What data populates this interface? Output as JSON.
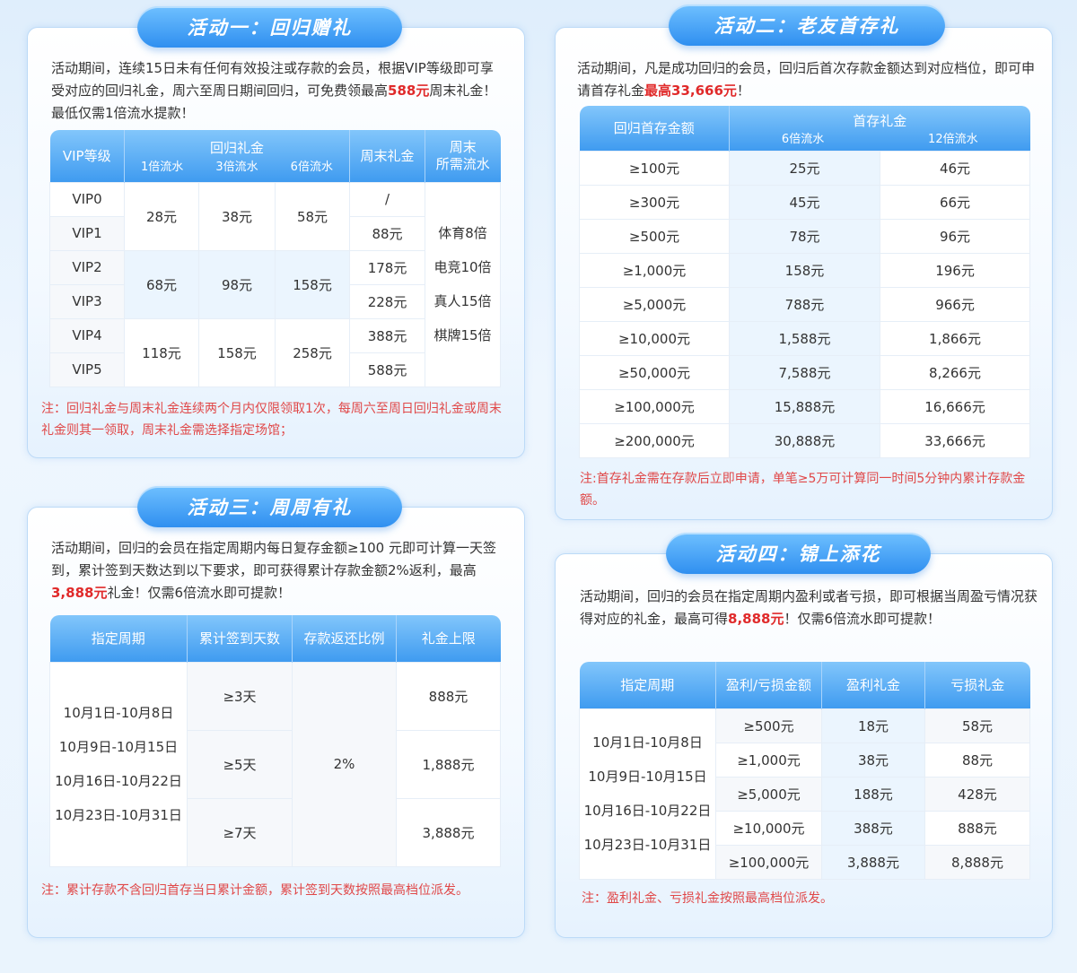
{
  "a1": {
    "title": "活动一：回归赠礼",
    "desc": [
      "活动期间，连续15日未有任何有效投注或存款的会员，根据VIP等级即可享受对应的回归礼金，周六至周日期间回归，可免费领最高",
      "588元",
      "周末礼金！最低仅需1倍流水提款！"
    ],
    "headers": {
      "vip": "VIP等级",
      "gift": "回归礼金",
      "x1": "1倍流水",
      "x3": "3倍流水",
      "x6": "6倍流水",
      "weekend": "周末礼金",
      "turnover1": "周末",
      "turnover2": "所需流水"
    },
    "vips": [
      "VIP0",
      "VIP1",
      "VIP2",
      "VIP3",
      "VIP4",
      "VIP5"
    ],
    "gifts": [
      [
        "28元",
        "38元",
        "58元"
      ],
      [
        "68元",
        "98元",
        "158元"
      ],
      [
        "118元",
        "158元",
        "258元"
      ]
    ],
    "weekend": [
      "/",
      "88元",
      "178元",
      "228元",
      "388元",
      "588元"
    ],
    "turnover": [
      "体育8倍",
      "电竞10倍",
      "真人15倍",
      "棋牌15倍"
    ],
    "note": "注：回归礼金与周末礼金连续两个月内仅限领取1次，每周六至周日回归礼金或周末礼金则其一领取，周末礼金需选择指定场馆；"
  },
  "a2": {
    "title": "活动二：老友首存礼",
    "desc": [
      "活动期间，凡是成功回归的会员，回归后首次存款金额达到对应档位，即可申请首存礼金",
      "最高33,666元",
      "！"
    ],
    "headers": {
      "amount": "回归首存金额",
      "gift": "首存礼金",
      "x6": "6倍流水",
      "x12": "12倍流水"
    },
    "rows": [
      [
        "≥100元",
        "25元",
        "46元"
      ],
      [
        "≥300元",
        "45元",
        "66元"
      ],
      [
        "≥500元",
        "78元",
        "96元"
      ],
      [
        "≥1,000元",
        "158元",
        "196元"
      ],
      [
        "≥5,000元",
        "788元",
        "966元"
      ],
      [
        "≥10,000元",
        "1,588元",
        "1,866元"
      ],
      [
        "≥50,000元",
        "7,588元",
        "8,266元"
      ],
      [
        "≥100,000元",
        "15,888元",
        "16,666元"
      ],
      [
        "≥200,000元",
        "30,888元",
        "33,666元"
      ]
    ],
    "note": "注:首存礼金需在存款后立即申请，单笔≥5万可计算同一时间5分钟内累计存款金额。"
  },
  "a3": {
    "title": "活动三：周周有礼",
    "desc": [
      "活动期间，回归的会员在指定周期内每日复存金额≥100 元即可计算一天签到，累计签到天数达到以下要求，即可获得累计存款金额2%返利，最高",
      "3,888元",
      "礼金！仅需6倍流水即可提款！"
    ],
    "headers": [
      "指定周期",
      "累计签到天数",
      "存款返还比例",
      "礼金上限"
    ],
    "periods": [
      "10月1日-10月8日",
      "10月9日-10月15日",
      "10月16日-10月22日",
      "10月23日-10月31日"
    ],
    "days": [
      "≥3天",
      "≥5天",
      "≥7天"
    ],
    "ratio": "2%",
    "caps": [
      "888元",
      "1,888元",
      "3,888元"
    ],
    "note": "注：累计存款不含回归首存当日累计金额，累计签到天数按照最高档位派发。"
  },
  "a4": {
    "title": "活动四：锦上添花",
    "desc": [
      "活动期间，回归的会员在指定周期内盈利或者亏损，即可根据当周盈亏情况获得对应的礼金，最高可得",
      "8,888元",
      "！仅需6倍流水即可提款！"
    ],
    "headers": [
      "指定周期",
      "盈利/亏损金额",
      "盈利礼金",
      "亏损礼金"
    ],
    "periods": [
      "10月1日-10月8日",
      "10月9日-10月15日",
      "10月16日-10月22日",
      "10月23日-10月31日"
    ],
    "rows": [
      [
        "≥500元",
        "18元",
        "58元"
      ],
      [
        "≥1,000元",
        "38元",
        "88元"
      ],
      [
        "≥5,000元",
        "188元",
        "428元"
      ],
      [
        "≥10,000元",
        "388元",
        "888元"
      ],
      [
        "≥100,000元",
        "3,888元",
        "8,888元"
      ]
    ],
    "note": "注：盈利礼金、亏损礼金按照最高档位派发。"
  }
}
